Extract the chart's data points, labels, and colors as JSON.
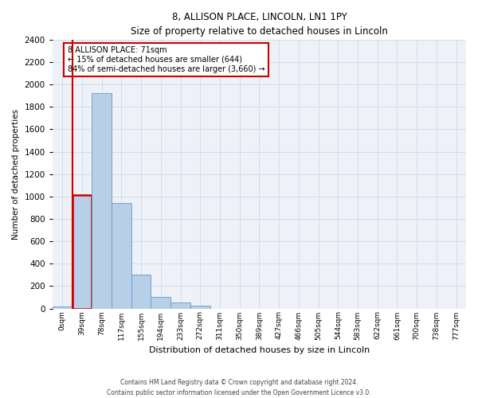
{
  "title1": "8, ALLISON PLACE, LINCOLN, LN1 1PY",
  "title2": "Size of property relative to detached houses in Lincoln",
  "xlabel": "Distribution of detached houses by size in Lincoln",
  "ylabel": "Number of detached properties",
  "annotation_title": "8 ALLISON PLACE: 71sqm",
  "annotation_line2": "← 15% of detached houses are smaller (644)",
  "annotation_line3": "84% of semi-detached houses are larger (3,660) →",
  "footer1": "Contains HM Land Registry data © Crown copyright and database right 2024.",
  "footer2": "Contains public sector information licensed under the Open Government Licence v3.0.",
  "bar_labels": [
    "0sqm",
    "39sqm",
    "78sqm",
    "117sqm",
    "155sqm",
    "194sqm",
    "233sqm",
    "272sqm",
    "311sqm",
    "350sqm",
    "389sqm",
    "427sqm",
    "466sqm",
    "505sqm",
    "544sqm",
    "583sqm",
    "622sqm",
    "661sqm",
    "700sqm",
    "738sqm",
    "777sqm"
  ],
  "bar_values": [
    20,
    1010,
    1920,
    940,
    300,
    100,
    50,
    25,
    0,
    0,
    0,
    0,
    0,
    0,
    0,
    0,
    0,
    0,
    0,
    0,
    0
  ],
  "highlight_bar_index": 1,
  "highlight_color": "#cc0000",
  "bar_color": "#b8cfe8",
  "bar_edge_color": "#6699cc",
  "bg_color": "#eef2f8",
  "ylim": [
    0,
    2400
  ],
  "yticks": [
    0,
    200,
    400,
    600,
    800,
    1000,
    1200,
    1400,
    1600,
    1800,
    2000,
    2200,
    2400
  ],
  "grid_color": "#c8d4e8"
}
